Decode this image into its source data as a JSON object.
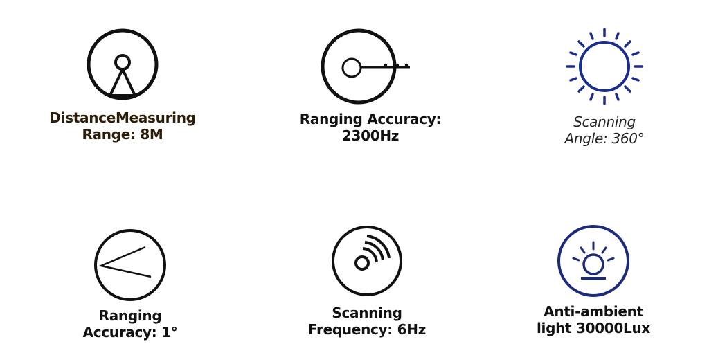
{
  "features": [
    {
      "icon": "radar-tower-icon",
      "line1": "DistanceMeasuring",
      "line2": "Range: 8M"
    },
    {
      "icon": "laser-target-icon",
      "line1": "Ranging Accuracy:",
      "line2": "2300Hz"
    },
    {
      "icon": "sun-icon",
      "line1": "Scanning",
      "line2": "Angle: 360°"
    },
    {
      "icon": "angle-icon",
      "line1": "Ranging",
      "line2": "Accuracy: 1°"
    },
    {
      "icon": "signal-waves-icon",
      "line1": "Scanning",
      "line2": "Frequency: 6Hz"
    },
    {
      "icon": "ambient-light-icon",
      "line1": "Anti-ambient",
      "line2": "light 30000Lux"
    }
  ],
  "colors": {
    "icon_stroke": "#111111",
    "sun_stroke": "#1a2d8f",
    "light_stroke": "#1c2a7a"
  }
}
